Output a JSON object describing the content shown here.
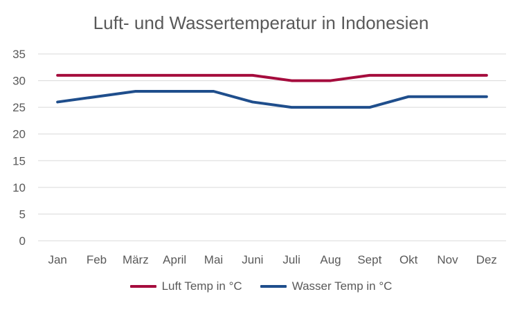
{
  "chart_data": {
    "type": "line",
    "title": "Luft- und Wassertemperatur in Indonesien",
    "categories": [
      "Jan",
      "Feb",
      "März",
      "April",
      "Mai",
      "Juni",
      "Juli",
      "Aug",
      "Sept",
      "Okt",
      "Nov",
      "Dez"
    ],
    "series": [
      {
        "name": "Luft Temp in °C",
        "color": "#A50C3D",
        "values": [
          31,
          31,
          31,
          31,
          31,
          31,
          30,
          30,
          31,
          31,
          31,
          31
        ]
      },
      {
        "name": "Wasser Temp in °C",
        "color": "#1F4E8C",
        "values": [
          26,
          27,
          28,
          28,
          28,
          26,
          25,
          25,
          25,
          27,
          27,
          27
        ]
      }
    ],
    "ylim": [
      0,
      35
    ],
    "yticks": [
      "0",
      "5",
      "10",
      "15",
      "20",
      "25",
      "30",
      "35"
    ],
    "grid": true,
    "legend_position": "bottom"
  }
}
